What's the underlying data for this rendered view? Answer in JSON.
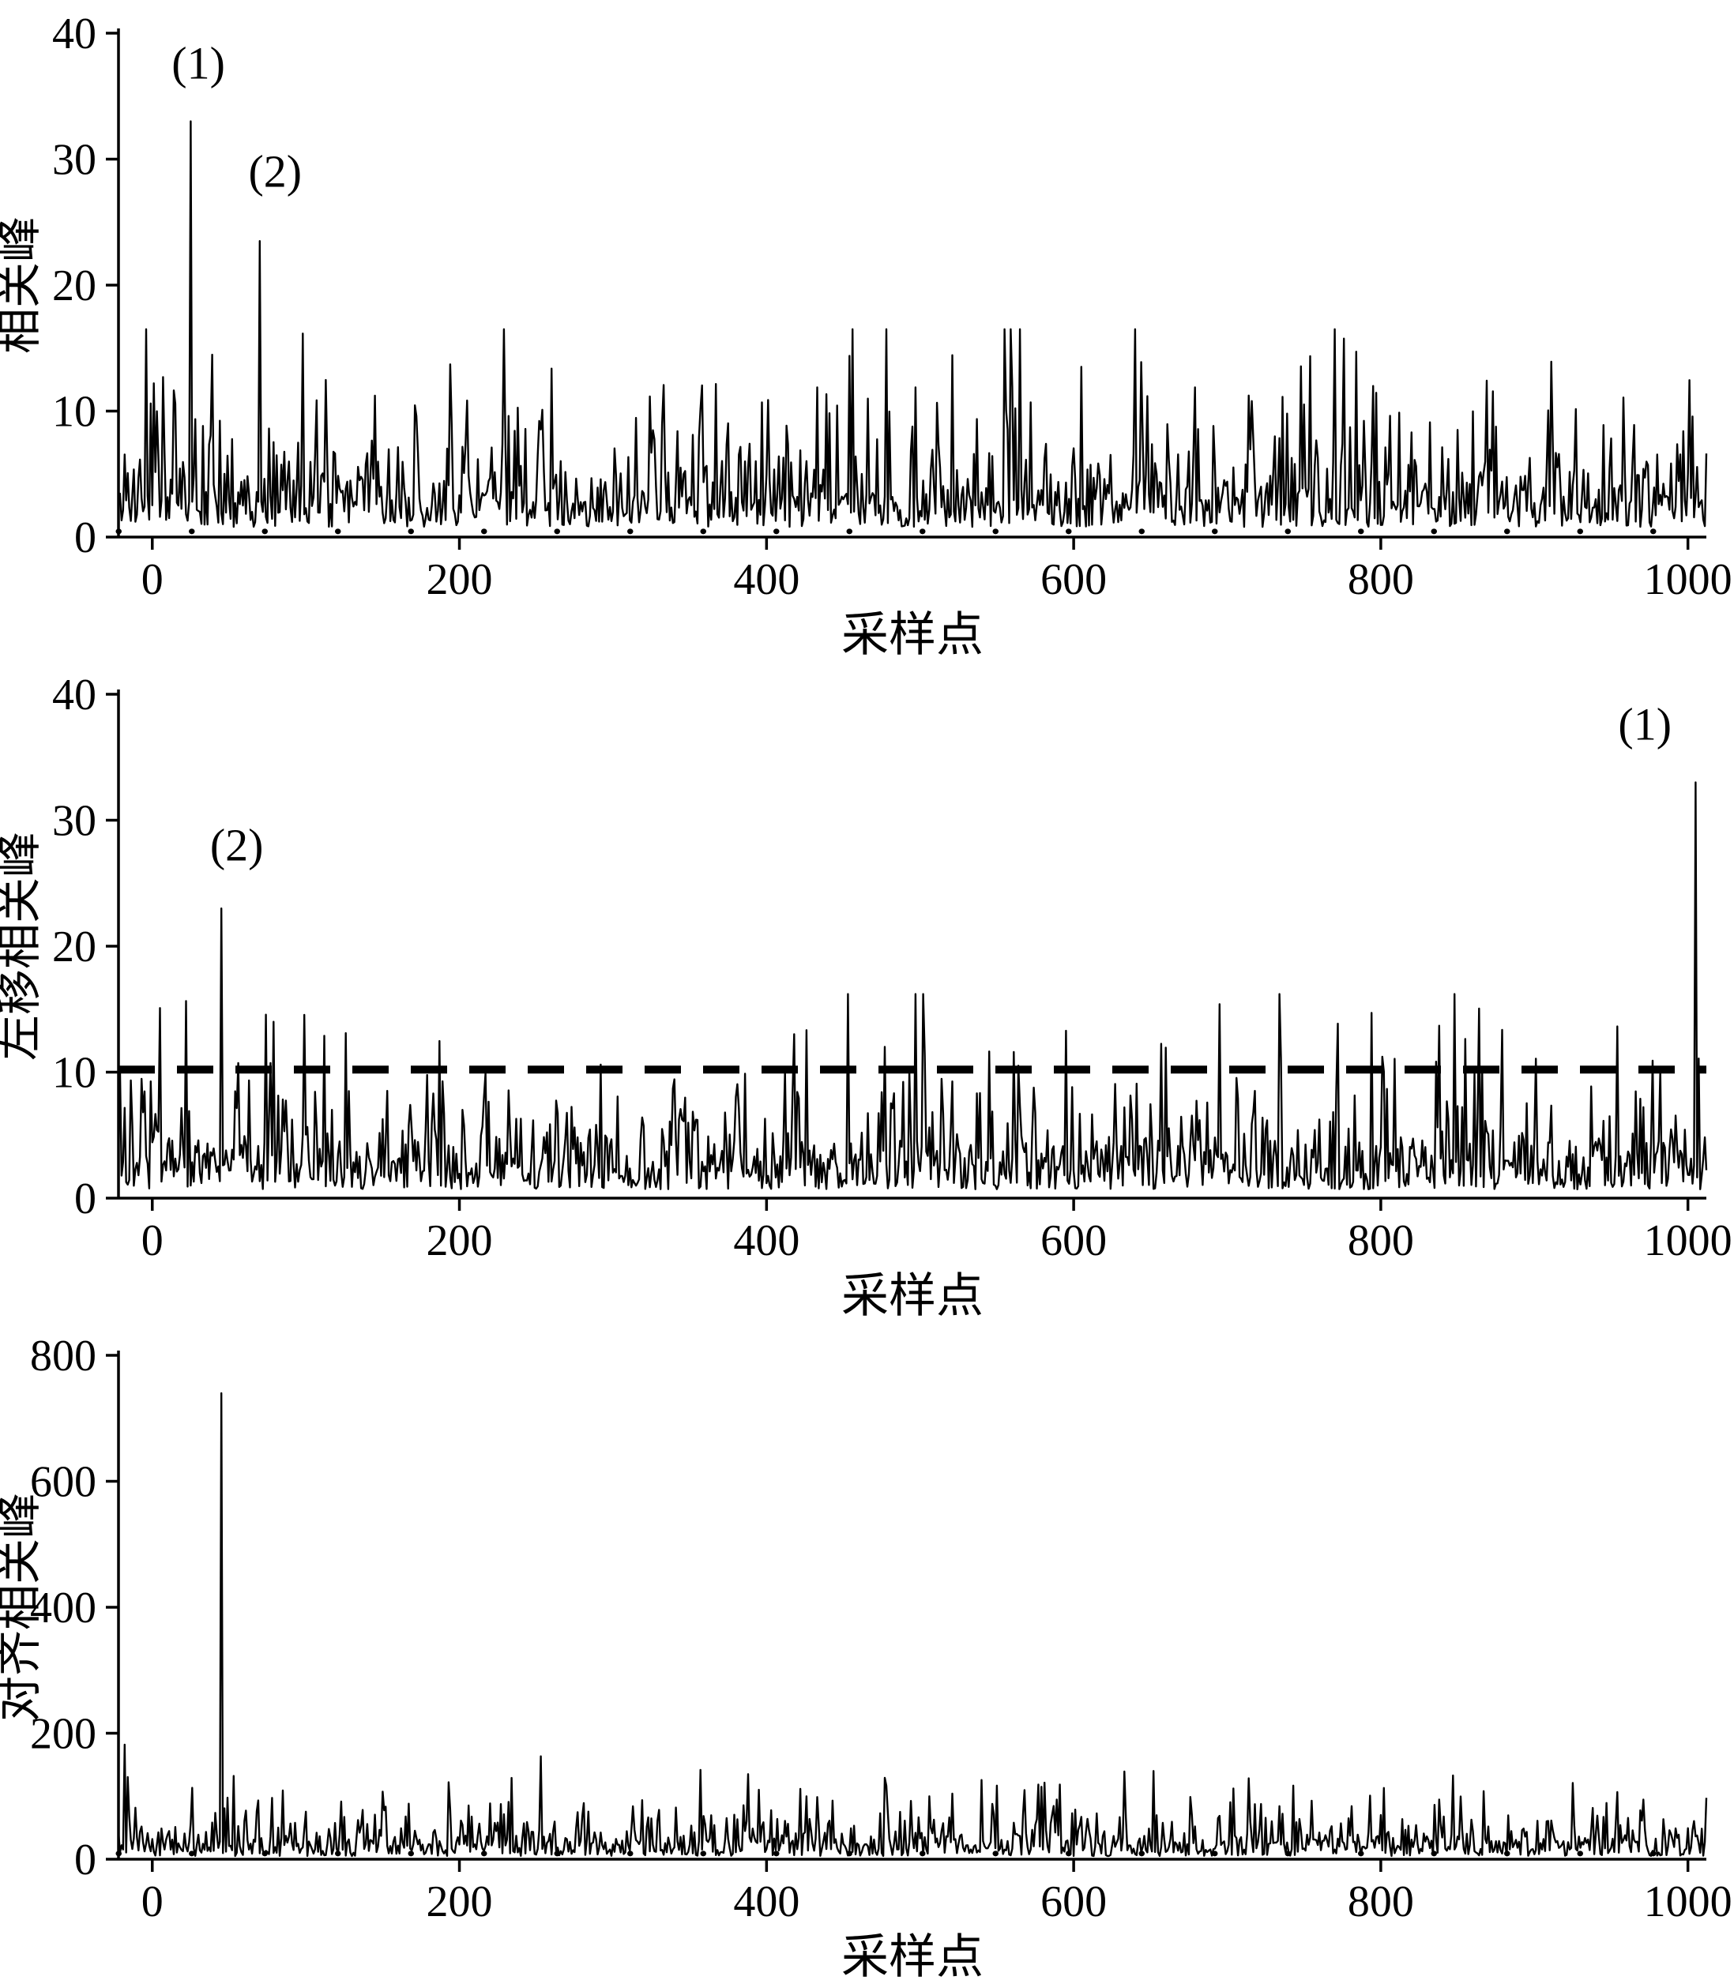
{
  "page": {
    "background": "#ffffff",
    "ink_color": "#000000"
  },
  "chart_data": [
    {
      "type": "line",
      "title": "",
      "xlabel": "采样点",
      "ylabel": "相关峰",
      "xlim": [
        -22,
        1012
      ],
      "ylim": [
        0,
        40
      ],
      "xticks": [
        0,
        200,
        400,
        600,
        800,
        1000
      ],
      "yticks": [
        0,
        10,
        20,
        30,
        40
      ],
      "grid": false,
      "legend": null,
      "series": {
        "name": "correlation-peaks",
        "color": "#000000",
        "seed": 42,
        "noise_base": 0.8,
        "noise_scale": 3.3,
        "noise_cap": 16.5,
        "peaks": [
          {
            "x": 25,
            "y": 33,
            "label": "(1)"
          },
          {
            "x": 70,
            "y": 23.5,
            "label": "(2)"
          }
        ]
      },
      "threshold_line": {
        "y": 0.45,
        "style": "dotted"
      },
      "annotations": [
        {
          "text": "(1)",
          "x": 30,
          "y": 36.4
        },
        {
          "text": "(2)",
          "x": 80,
          "y": 27.8
        }
      ]
    },
    {
      "type": "line",
      "title": "",
      "xlabel": "采样点",
      "ylabel": "左移相关峰",
      "xlim": [
        -22,
        1012
      ],
      "ylim": [
        0,
        40
      ],
      "xticks": [
        0,
        200,
        400,
        600,
        800,
        1000
      ],
      "yticks": [
        0,
        10,
        20,
        30,
        40
      ],
      "grid": false,
      "legend": null,
      "series": {
        "name": "left-shifted-correlation-peaks",
        "color": "#000000",
        "seed": 77,
        "noise_base": 0.7,
        "noise_scale": 3.0,
        "noise_cap": 16.2,
        "peaks": [
          {
            "x": 45,
            "y": 23,
            "label": "(2)"
          },
          {
            "x": 1005,
            "y": 33,
            "label": "(1)"
          }
        ]
      },
      "threshold_line": {
        "y": 10.2,
        "style": "dashed"
      },
      "annotations": [
        {
          "text": "(2)",
          "x": 55,
          "y": 26.8
        },
        {
          "text": "(1)",
          "x": 972,
          "y": 36.4
        }
      ]
    },
    {
      "type": "line",
      "title": "",
      "xlabel": "采样点",
      "ylabel": "对齐相关峰",
      "xlim": [
        -22,
        1012
      ],
      "ylim": [
        0,
        800
      ],
      "xticks": [
        0,
        200,
        400,
        600,
        800,
        1000
      ],
      "yticks": [
        0,
        200,
        400,
        600,
        800
      ],
      "grid": false,
      "legend": null,
      "series": {
        "name": "aligned-correlation-peaks",
        "color": "#000000",
        "seed": 99,
        "noise_base": 5,
        "noise_scale": 28,
        "noise_cap": 182,
        "peaks": [
          {
            "x": 45,
            "y": 740,
            "label": ""
          }
        ]
      },
      "threshold_line": {
        "y": 9,
        "style": "dotted"
      },
      "annotations": []
    }
  ]
}
